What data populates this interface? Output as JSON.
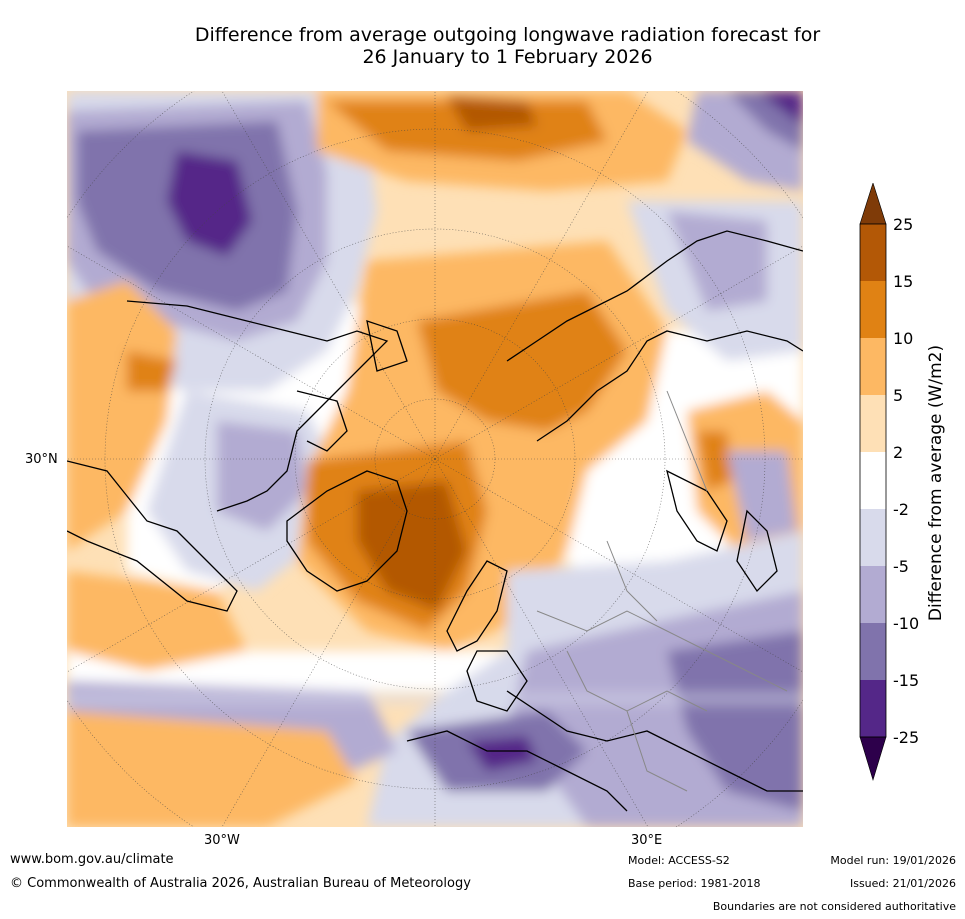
{
  "title_line1": "Difference from average outgoing longwave radiation forecast for",
  "title_line2": "26 January to 1 February 2026",
  "map": {
    "lat_label_left": "30°N",
    "lon_label_west": "30°W",
    "lon_label_east": "30°E"
  },
  "colorbar": {
    "title": "Difference from average (W/m2)",
    "ticks": [
      "25",
      "15",
      "10",
      "5",
      "2",
      "-2",
      "-5",
      "-10",
      "-15",
      "-25"
    ],
    "colors": {
      "over": "#7f3b08",
      "b15_25": "#b35806",
      "b10_15": "#e08214",
      "b5_10": "#fdb863",
      "b2_5": "#fee0b6",
      "neutral": "#ffffff",
      "m2_m5": "#d8daeb",
      "m5_m10": "#b2abd2",
      "m10_m15": "#8073ac",
      "m15_m25": "#542788",
      "under": "#2d004b"
    }
  },
  "footer": {
    "website": "www.bom.gov.au/climate",
    "copyright": "© Commonwealth of Australia 2026, Australian Bureau of Meteorology",
    "model": "Model: ACCESS-S2",
    "base_period": "Base period: 1981-2018",
    "model_run": "Model run: 19/01/2026",
    "issued": "Issued: 21/01/2026",
    "disclaimer": "Boundaries are not considered authoritative"
  }
}
